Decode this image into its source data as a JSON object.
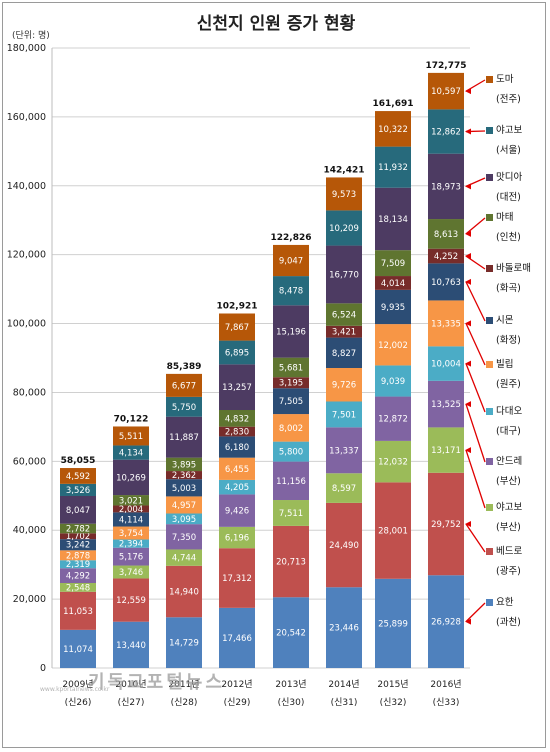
{
  "chart_data": {
    "type": "bar",
    "stacked": true,
    "title": "신천지 인원 증가 현황",
    "unit_label": "(단위: 명)",
    "ylim": [
      0,
      180000
    ],
    "y_ticks": [
      "0",
      "20,000",
      "40,000",
      "60,000",
      "80,000",
      "100,000",
      "120,000",
      "140,000",
      "160,000",
      "180,000"
    ],
    "grid": true,
    "legend_position": "right",
    "categories": [
      "2009년",
      "2010년",
      "2011년",
      "2012년",
      "2013년",
      "2014년",
      "2015년",
      "2016년"
    ],
    "category_sublabels": [
      "(신26)",
      "(신27)",
      "(신28)",
      "(신29)",
      "(신30)",
      "(신31)",
      "(신32)",
      "(신33)"
    ],
    "totals": [
      58055,
      70122,
      85389,
      102921,
      122826,
      142421,
      161691,
      172775
    ],
    "total_labels": [
      "58,055",
      "70,122",
      "85,389",
      "102,921",
      "122,826",
      "142,421",
      "161,691",
      "172,775"
    ],
    "series": [
      {
        "name": "요한",
        "sub": "(과천)",
        "color": "#4f81bd",
        "values": [
          11074,
          13440,
          14729,
          17466,
          20542,
          23446,
          25899,
          26928
        ],
        "labels": [
          "11,074",
          "13,440",
          "14,729",
          "17,466",
          "20,542",
          "23,446",
          "25,899",
          "26,928"
        ]
      },
      {
        "name": "베드로",
        "sub": "(광주)",
        "color": "#c0504d",
        "values": [
          11053,
          12559,
          14940,
          17312,
          20713,
          24490,
          28001,
          29752
        ],
        "labels": [
          "11,053",
          "12,559",
          "14,940",
          "17,312",
          "20,713",
          "24,490",
          "28,001",
          "29,752"
        ]
      },
      {
        "name": "야고보",
        "sub": "(부산)",
        "color": "#9bbb59",
        "values": [
          2548,
          3746,
          4744,
          6196,
          7511,
          8597,
          12032,
          13171
        ],
        "labels": [
          "2,548",
          "3,746",
          "4,744",
          "6,196",
          "7,511",
          "8,597",
          "12,032",
          "13,171"
        ]
      },
      {
        "name": "안드레",
        "sub": "(부산)",
        "color": "#8064a2",
        "values": [
          4292,
          5176,
          7350,
          9426,
          11156,
          13337,
          12872,
          13525
        ],
        "labels": [
          "4,292",
          "5,176",
          "7,350",
          "9,426",
          "11,156",
          "13,337",
          "12,872",
          "13,525"
        ]
      },
      {
        "name": "다대오",
        "sub": "(대구)",
        "color": "#4bacc6",
        "values": [
          2319,
          2394,
          3095,
          4205,
          5800,
          7501,
          9039,
          10004
        ],
        "labels": [
          "2,319",
          "2,394",
          "3,095",
          "4,205",
          "5,800",
          "7,501",
          "9,039",
          "10,004"
        ]
      },
      {
        "name": "빌립",
        "sub": "(원주)",
        "color": "#f79646",
        "values": [
          2878,
          3754,
          4957,
          6455,
          8002,
          9726,
          12002,
          13335
        ],
        "labels": [
          "2,878",
          "3,754",
          "4,957",
          "6,455",
          "8,002",
          "9,726",
          "12,002",
          "13,335"
        ]
      },
      {
        "name": "시몬",
        "sub": "(화정)",
        "color": "#2c4d75",
        "values": [
          3242,
          4114,
          5003,
          6180,
          7505,
          8827,
          9935,
          10763
        ],
        "labels": [
          "3,242",
          "4,114",
          "5,003",
          "6,180",
          "7,505",
          "8,827",
          "9,935",
          "10,763"
        ]
      },
      {
        "name": "바돌로매",
        "sub": "(화곡)",
        "color": "#772c2a",
        "values": [
          1702,
          2004,
          2362,
          2830,
          3195,
          3421,
          4014,
          4252
        ],
        "labels": [
          "1,702",
          "2,004",
          "2,362",
          "2,830",
          "3,195",
          "3,421",
          "4,014",
          "4,252"
        ]
      },
      {
        "name": "마태",
        "sub": "(인천)",
        "color": "#5f7530",
        "values": [
          2782,
          3021,
          3895,
          4832,
          5681,
          6524,
          7509,
          8613
        ],
        "labels": [
          "2,782",
          "3,021",
          "3,895",
          "4,832",
          "5,681",
          "6,524",
          "7,509",
          "8,613"
        ]
      },
      {
        "name": "맛디아",
        "sub": "(대전)",
        "color": "#4d3b62",
        "values": [
          8047,
          10269,
          11887,
          13257,
          15196,
          16770,
          18134,
          18973
        ],
        "labels": [
          "8,047",
          "10,269",
          "11,887",
          "13,257",
          "15,196",
          "16,770",
          "18,134",
          "18,973"
        ]
      },
      {
        "name": "야고보",
        "sub": "(서울)",
        "color": "#276a7c",
        "values": [
          3526,
          4134,
          5750,
          6895,
          8478,
          10209,
          11932,
          12862
        ],
        "labels": [
          "3,526",
          "4,134",
          "5,750",
          "6,895",
          "8,478",
          "10,209",
          "11,932",
          "12,862"
        ]
      },
      {
        "name": "도마",
        "sub": "(전주)",
        "color": "#b65708",
        "values": [
          4592,
          5511,
          6677,
          7867,
          9047,
          9573,
          10322,
          10597
        ],
        "labels": [
          "4,592",
          "5,511",
          "6,677",
          "7,867",
          "9,047",
          "9,573",
          "10,322",
          "10,597"
        ]
      }
    ],
    "watermark": "기독교포털뉴스",
    "watermark_url": "www.kportalnews.co.kr"
  }
}
